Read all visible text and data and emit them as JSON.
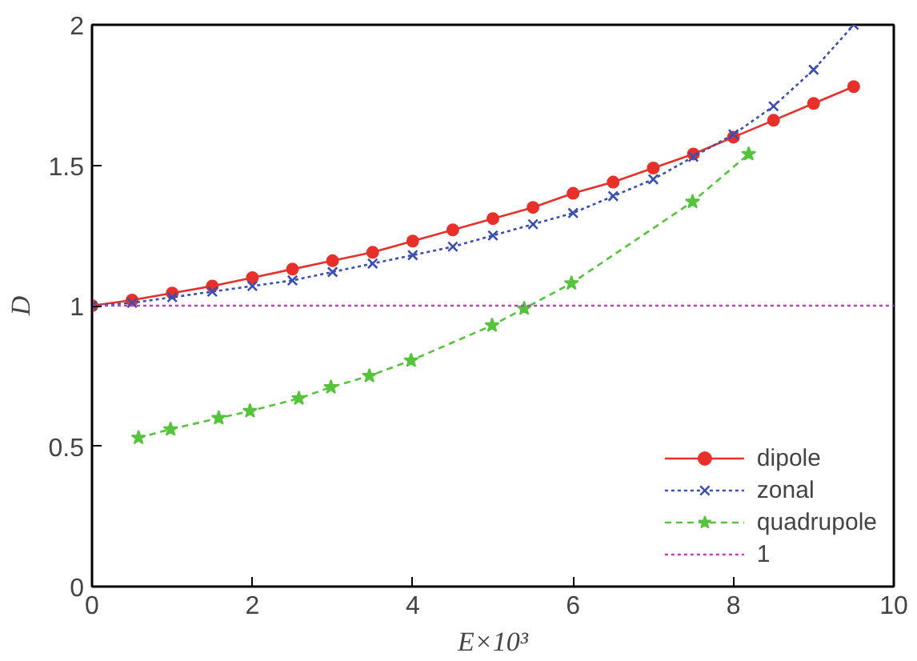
{
  "chart_data": {
    "type": "line",
    "xlabel": "E×10³",
    "ylabel": "D",
    "xlim": [
      0,
      10
    ],
    "ylim": [
      0,
      2
    ],
    "xticks": [
      0,
      2,
      4,
      6,
      8,
      10
    ],
    "yticks": [
      0,
      0.5,
      1,
      1.5,
      2
    ],
    "grid": false,
    "legend": "bottom right",
    "series": [
      {
        "name": "dipole",
        "color": "#e8302a",
        "marker": "circle",
        "line_style": "solid",
        "x": [
          0,
          0.5,
          1,
          1.5,
          2,
          2.5,
          3,
          3.5,
          4,
          4.5,
          5,
          5.5,
          6,
          6.5,
          7,
          7.5,
          8,
          8.5,
          9,
          9.5
        ],
        "values": [
          1,
          1.02,
          1.045,
          1.07,
          1.1,
          1.13,
          1.16,
          1.19,
          1.23,
          1.27,
          1.31,
          1.35,
          1.4,
          1.44,
          1.49,
          1.54,
          1.6,
          1.66,
          1.72,
          1.78
        ]
      },
      {
        "name": "zonal",
        "color": "#3a4fb0",
        "marker": "cross",
        "line_style": "dotted",
        "x": [
          0,
          0.5,
          1,
          1.5,
          2,
          2.5,
          3,
          3.5,
          4,
          4.5,
          5,
          5.5,
          6,
          6.5,
          7,
          7.5,
          8,
          8.5,
          9,
          9.5
        ],
        "values": [
          1,
          1.01,
          1.03,
          1.05,
          1.07,
          1.09,
          1.12,
          1.15,
          1.18,
          1.21,
          1.25,
          1.29,
          1.33,
          1.39,
          1.45,
          1.53,
          1.61,
          1.71,
          1.84,
          2.0
        ]
      },
      {
        "name": "quadrupole",
        "color": "#55c43c",
        "marker": "star",
        "line_style": "dashed",
        "x": [
          0.58,
          0.98,
          1.58,
          1.97,
          2.58,
          2.98,
          3.46,
          3.98,
          4.99,
          5.39,
          5.98,
          7.49,
          8.19
        ],
        "values": [
          0.53,
          0.56,
          0.6,
          0.625,
          0.67,
          0.71,
          0.75,
          0.805,
          0.93,
          0.99,
          1.08,
          1.37,
          1.54
        ]
      },
      {
        "name": "1",
        "color": "#c040c0",
        "marker": "none",
        "line_style": "dotted",
        "x": [
          0,
          10
        ],
        "values": [
          1,
          1
        ]
      }
    ]
  }
}
